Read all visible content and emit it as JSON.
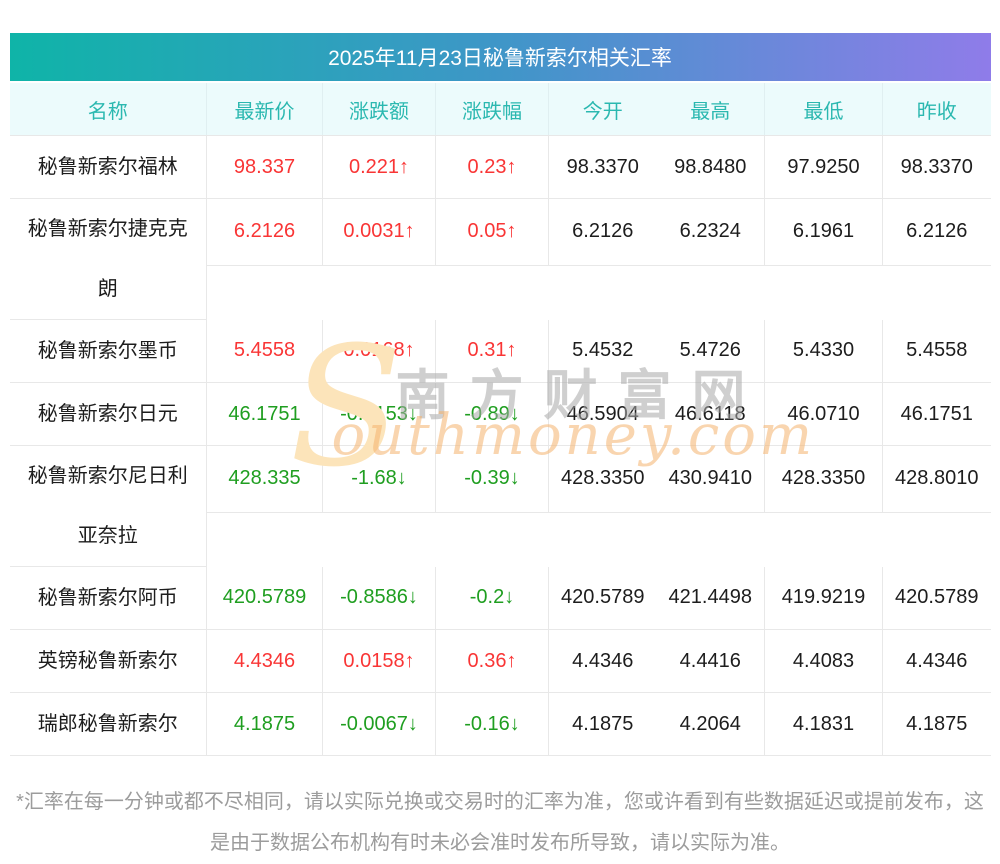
{
  "title": "2025年11月23日秘鲁新索尔相关汇率",
  "table": {
    "headers": [
      "名称",
      "最新价",
      "涨跌额",
      "涨跌幅",
      "今开",
      "最高",
      "最低",
      "昨收"
    ],
    "rows": [
      {
        "name": "秘鲁新索尔福林",
        "two_line": false,
        "trend": "up",
        "latest": "98.337",
        "change": "0.221",
        "change_pct": "0.23",
        "open": "98.3370",
        "high": "98.8480",
        "low": "97.9250",
        "prev_close": "98.3370"
      },
      {
        "name": "秘鲁新索尔捷克克朗",
        "two_line": true,
        "trend": "up",
        "latest": "6.2126",
        "change": "0.0031",
        "change_pct": "0.05",
        "open": "6.2126",
        "high": "6.2324",
        "low": "6.1961",
        "prev_close": "6.2126"
      },
      {
        "name": "秘鲁新索尔墨币",
        "two_line": false,
        "trend": "up",
        "latest": "5.4558",
        "change": "0.0168",
        "change_pct": "0.31",
        "open": "5.4532",
        "high": "5.4726",
        "low": "5.4330",
        "prev_close": "5.4558"
      },
      {
        "name": "秘鲁新索尔日元",
        "two_line": false,
        "trend": "down",
        "latest": "46.1751",
        "change": "-0.4153",
        "change_pct": "-0.89",
        "open": "46.5904",
        "high": "46.6118",
        "low": "46.0710",
        "prev_close": "46.1751"
      },
      {
        "name": "秘鲁新索尔尼日利亚奈拉",
        "two_line": true,
        "trend": "down",
        "latest": "428.335",
        "change": "-1.68",
        "change_pct": "-0.39",
        "open": "428.3350",
        "high": "430.9410",
        "low": "428.3350",
        "prev_close": "428.8010"
      },
      {
        "name": "秘鲁新索尔阿币",
        "two_line": false,
        "trend": "down",
        "latest": "420.5789",
        "change": "-0.8586",
        "change_pct": "-0.2",
        "open": "420.5789",
        "high": "421.4498",
        "low": "419.9219",
        "prev_close": "420.5789"
      },
      {
        "name": "英镑秘鲁新索尔",
        "two_line": false,
        "trend": "up",
        "latest": "4.4346",
        "change": "0.0158",
        "change_pct": "0.36",
        "open": "4.4346",
        "high": "4.4416",
        "low": "4.4083",
        "prev_close": "4.4346"
      },
      {
        "name": "瑞郎秘鲁新索尔",
        "two_line": false,
        "trend": "down",
        "latest": "4.1875",
        "change": "-0.0067",
        "change_pct": "-0.16",
        "open": "4.1875",
        "high": "4.2064",
        "low": "4.1831",
        "prev_close": "4.1875"
      }
    ]
  },
  "symbols": {
    "arrow_up": "↑",
    "arrow_down": "↓"
  },
  "watermark": {
    "initial": "S",
    "cn_text": "南方财富网",
    "en_text": "outhmoney.com"
  },
  "footnote": "*汇率在每一分钟或都不尽相同，请以实际兑换或交易时的汇率为准，您或许看到有些数据延迟或提前发布，这是由于数据公布机构有时未必会准时发布所导致，请以实际为准。",
  "colors": {
    "gradient_left": "#0fb4a8",
    "gradient_mid": "#3f96c8",
    "gradient_right": "#8f7ce9",
    "header_bg": "#ecfbfc",
    "header_text": "#2bb8b0",
    "up_red": "#f93535",
    "down_green": "#1f9e20",
    "watermark_orange": "#f4b26e"
  }
}
